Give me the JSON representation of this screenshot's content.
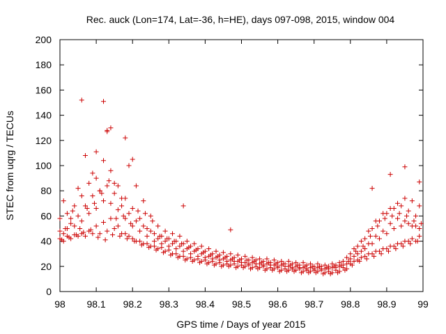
{
  "chart_data": {
    "type": "scatter",
    "title": "Rec. auck (Lon=174, Lat=-36, h=HE), days 097-098, 2015, window 004",
    "xlabel": "GPS time / Days of year 2015",
    "ylabel": "STEC from uqrg / TECUs",
    "xlim": [
      98,
      99
    ],
    "ylim": [
      0,
      200
    ],
    "xticks": [
      "98",
      "98.1",
      "98.2",
      "98.3",
      "98.4",
      "98.5",
      "98.6",
      "98.7",
      "98.8",
      "98.9",
      "99"
    ],
    "yticks": [
      "0",
      "20",
      "40",
      "60",
      "80",
      "100",
      "120",
      "140",
      "160",
      "180",
      "200"
    ],
    "grid": false,
    "marker": "+",
    "marker_color": "#cc0000",
    "series": [
      {
        "x": [
          98.0,
          98.02,
          98.04,
          98.06,
          98.08,
          98.1,
          98.12,
          98.14,
          98.16,
          98.18,
          98.2,
          98.22,
          98.24,
          98.26,
          98.28,
          98.3,
          98.32,
          98.34,
          98.36,
          98.38,
          98.4,
          98.42,
          98.44,
          98.46,
          98.48,
          98.5,
          98.52,
          98.54,
          98.56,
          98.58,
          98.6,
          98.62,
          98.64,
          98.66,
          98.68,
          98.7,
          98.72,
          98.74,
          98.76,
          98.78,
          98.8,
          98.82,
          98.84,
          98.86,
          98.88,
          98.9,
          98.92,
          98.94,
          98.96,
          98.98,
          98.0,
          98.02,
          98.04,
          98.06,
          98.08,
          98.1,
          98.12,
          98.14,
          98.16,
          98.18,
          98.2,
          98.22,
          98.24,
          98.26,
          98.28,
          98.3,
          98.32,
          98.34,
          98.36,
          98.38,
          98.4,
          98.42,
          98.44,
          98.46,
          98.48,
          98.5,
          98.52,
          98.54,
          98.56,
          98.58,
          98.6,
          98.62,
          98.64,
          98.66,
          98.68,
          98.7,
          98.72,
          98.74,
          98.76,
          98.78,
          98.8,
          98.82,
          98.84,
          98.86,
          98.88,
          98.9,
          98.92,
          98.94,
          98.96,
          98.98,
          98.0,
          98.02,
          98.04,
          98.06,
          98.08,
          98.1,
          98.12,
          98.14,
          98.16,
          98.18,
          98.2,
          98.22,
          98.24,
          98.26,
          98.28,
          98.3,
          98.32,
          98.34,
          98.36,
          98.38,
          98.4,
          98.42,
          98.44,
          98.46,
          98.48,
          98.5,
          98.52,
          98.54,
          98.56,
          98.58,
          98.6,
          98.62,
          98.64,
          98.66,
          98.68,
          98.7,
          98.72,
          98.74,
          98.76,
          98.78,
          98.8,
          98.82,
          98.84,
          98.86,
          98.88,
          98.9,
          98.92,
          98.94,
          98.96,
          98.98,
          98.01,
          98.03,
          98.05,
          98.07,
          98.09,
          98.11,
          98.13,
          98.15,
          98.17,
          98.19,
          98.21,
          98.23,
          98.25,
          98.27,
          98.29,
          98.31,
          98.33,
          98.35,
          98.37,
          98.39,
          98.41,
          98.43,
          98.45,
          98.47,
          98.49,
          98.51,
          98.53,
          98.55,
          98.57,
          98.59,
          98.61,
          98.63,
          98.65,
          98.67,
          98.69,
          98.71,
          98.73,
          98.75,
          98.77,
          98.79,
          98.81,
          98.83,
          98.85,
          98.87,
          98.89,
          98.91,
          98.93,
          98.95,
          98.97,
          98.99,
          98.01,
          98.03,
          98.05,
          98.07,
          98.09,
          98.11,
          98.13,
          98.15,
          98.17,
          98.19,
          98.21,
          98.23,
          98.25,
          98.27,
          98.29,
          98.31,
          98.33,
          98.35,
          98.37,
          98.39,
          98.41,
          98.43,
          98.45,
          98.47,
          98.49,
          98.51,
          98.53,
          98.55,
          98.57,
          98.59,
          98.61,
          98.63,
          98.65,
          98.67,
          98.69,
          98.71,
          98.73,
          98.75,
          98.77,
          98.79,
          98.81,
          98.83,
          98.85,
          98.87,
          98.89,
          98.91,
          98.93,
          98.95,
          98.97,
          98.99,
          98.01,
          98.03,
          98.05,
          98.07,
          98.09,
          98.11,
          98.13,
          98.15,
          98.17,
          98.19,
          98.21,
          98.23,
          98.25,
          98.27,
          98.29,
          98.31,
          98.33,
          98.35,
          98.37,
          98.39,
          98.41,
          98.43,
          98.45,
          98.47,
          98.49,
          98.51,
          98.53,
          98.55,
          98.57,
          98.59,
          98.61,
          98.63,
          98.65,
          98.67,
          98.69,
          98.71,
          98.73,
          98.75,
          98.77,
          98.79,
          98.81,
          98.83,
          98.85,
          98.87,
          98.89,
          98.91,
          98.93,
          98.95,
          98.97,
          98.99,
          98.005,
          98.025,
          98.045,
          98.065,
          98.085,
          98.105,
          98.125,
          98.145,
          98.165,
          98.185,
          98.205,
          98.225,
          98.245,
          98.265,
          98.285,
          98.305,
          98.325,
          98.345,
          98.365,
          98.385,
          98.405,
          98.425,
          98.445,
          98.465,
          98.485,
          98.505,
          98.525,
          98.545,
          98.565,
          98.585,
          98.605,
          98.625,
          98.645,
          98.665,
          98.685,
          98.705,
          98.725,
          98.745,
          98.765,
          98.785,
          98.805,
          98.825,
          98.845,
          98.865,
          98.885,
          98.905,
          98.925,
          98.945,
          98.965,
          98.985,
          98.015,
          98.035,
          98.055,
          98.075,
          98.095,
          98.115,
          98.135,
          98.155,
          98.175,
          98.195,
          98.215,
          98.235,
          98.255,
          98.275,
          98.295,
          98.315,
          98.335,
          98.355,
          98.375,
          98.395,
          98.415,
          98.435,
          98.455,
          98.475,
          98.495,
          98.515,
          98.535,
          98.555,
          98.575,
          98.595,
          98.615,
          98.635,
          98.655,
          98.675,
          98.695,
          98.715,
          98.735,
          98.755,
          98.775,
          98.795,
          98.815,
          98.835,
          98.855,
          98.875,
          98.895,
          98.915,
          98.935,
          98.955,
          98.975,
          98.995,
          98.06,
          98.12,
          98.13,
          98.14,
          98.18,
          98.1,
          98.2,
          98.34,
          98.47,
          98.95,
          98.91,
          98.99,
          98.86
        ],
        "y": [
          42,
          44,
          45,
          46,
          48,
          52,
          55,
          58,
          52,
          46,
          42,
          40,
          38,
          36,
          35,
          33,
          30,
          28,
          27,
          26,
          25,
          24,
          23,
          22,
          22,
          21,
          21,
          20,
          20,
          19,
          19,
          18,
          18,
          18,
          17,
          17,
          17,
          16,
          17,
          19,
          22,
          25,
          28,
          30,
          32,
          34,
          36,
          38,
          40,
          40,
          48,
          50,
          52,
          56,
          62,
          66,
          72,
          70,
          65,
          58,
          52,
          48,
          44,
          40,
          38,
          36,
          34,
          32,
          30,
          28,
          27,
          26,
          25,
          24,
          24,
          23,
          22,
          22,
          21,
          21,
          20,
          20,
          19,
          19,
          18,
          18,
          18,
          18,
          19,
          21,
          26,
          30,
          34,
          38,
          42,
          46,
          50,
          52,
          54,
          52,
          58,
          62,
          68,
          76,
          86,
          90,
          104,
          96,
          84,
          74,
          66,
          58,
          50,
          46,
          44,
          42,
          40,
          38,
          36,
          34,
          32,
          30,
          29,
          28,
          27,
          26,
          25,
          25,
          24,
          23,
          23,
          22,
          22,
          21,
          21,
          20,
          20,
          20,
          21,
          24,
          30,
          36,
          42,
          50,
          56,
          62,
          66,
          68,
          64,
          60,
          40,
          42,
          44,
          44,
          46,
          46,
          48,
          50,
          46,
          44,
          40,
          38,
          36,
          34,
          32,
          30,
          28,
          26,
          25,
          24,
          23,
          22,
          21,
          21,
          20,
          20,
          19,
          19,
          18,
          18,
          17,
          17,
          17,
          16,
          16,
          16,
          15,
          15,
          16,
          18,
          24,
          27,
          30,
          32,
          34,
          36,
          38,
          40,
          42,
          44,
          46,
          54,
          60,
          68,
          76,
          80,
          84,
          78,
          68,
          62,
          56,
          52,
          48,
          42,
          40,
          38,
          36,
          34,
          32,
          30,
          28,
          27,
          26,
          25,
          24,
          23,
          23,
          22,
          22,
          21,
          21,
          20,
          20,
          19,
          19,
          19,
          18,
          19,
          20,
          22,
          28,
          32,
          38,
          44,
          48,
          54,
          58,
          56,
          52,
          50,
          72,
          58,
          82,
          108,
          94,
          80,
          128,
          86,
          74,
          100,
          84,
          72,
          60,
          52,
          48,
          46,
          44,
          40,
          38,
          36,
          34,
          32,
          31,
          30,
          29,
          28,
          27,
          26,
          26,
          25,
          24,
          24,
          23,
          23,
          22,
          22,
          21,
          22,
          23,
          27,
          34,
          40,
          48,
          56,
          62,
          66,
          70,
          74,
          72,
          68,
          41,
          43,
          45,
          47,
          49,
          43,
          41,
          45,
          44,
          42,
          40,
          37,
          35,
          33,
          31,
          29,
          27,
          25,
          24,
          23,
          22,
          21,
          20,
          20,
          19,
          19,
          18,
          18,
          17,
          17,
          16,
          16,
          16,
          15,
          15,
          15,
          14,
          14,
          15,
          17,
          21,
          24,
          26,
          28,
          30,
          32,
          34,
          36,
          38,
          40,
          50,
          64,
          50,
          66,
          70,
          78,
          88,
          58,
          60,
          54,
          64,
          62,
          56,
          44,
          42,
          40,
          38,
          35,
          33,
          31,
          29,
          28,
          27,
          26,
          25,
          25,
          24,
          23,
          23,
          22,
          22,
          21,
          21,
          20,
          20,
          20,
          19,
          20,
          21,
          24,
          32,
          36,
          44,
          52,
          58,
          60,
          62,
          60,
          56,
          54,
          152,
          151,
          127,
          130,
          122,
          111,
          105,
          68,
          49,
          99,
          93,
          87,
          82
        ]
      }
    ]
  }
}
